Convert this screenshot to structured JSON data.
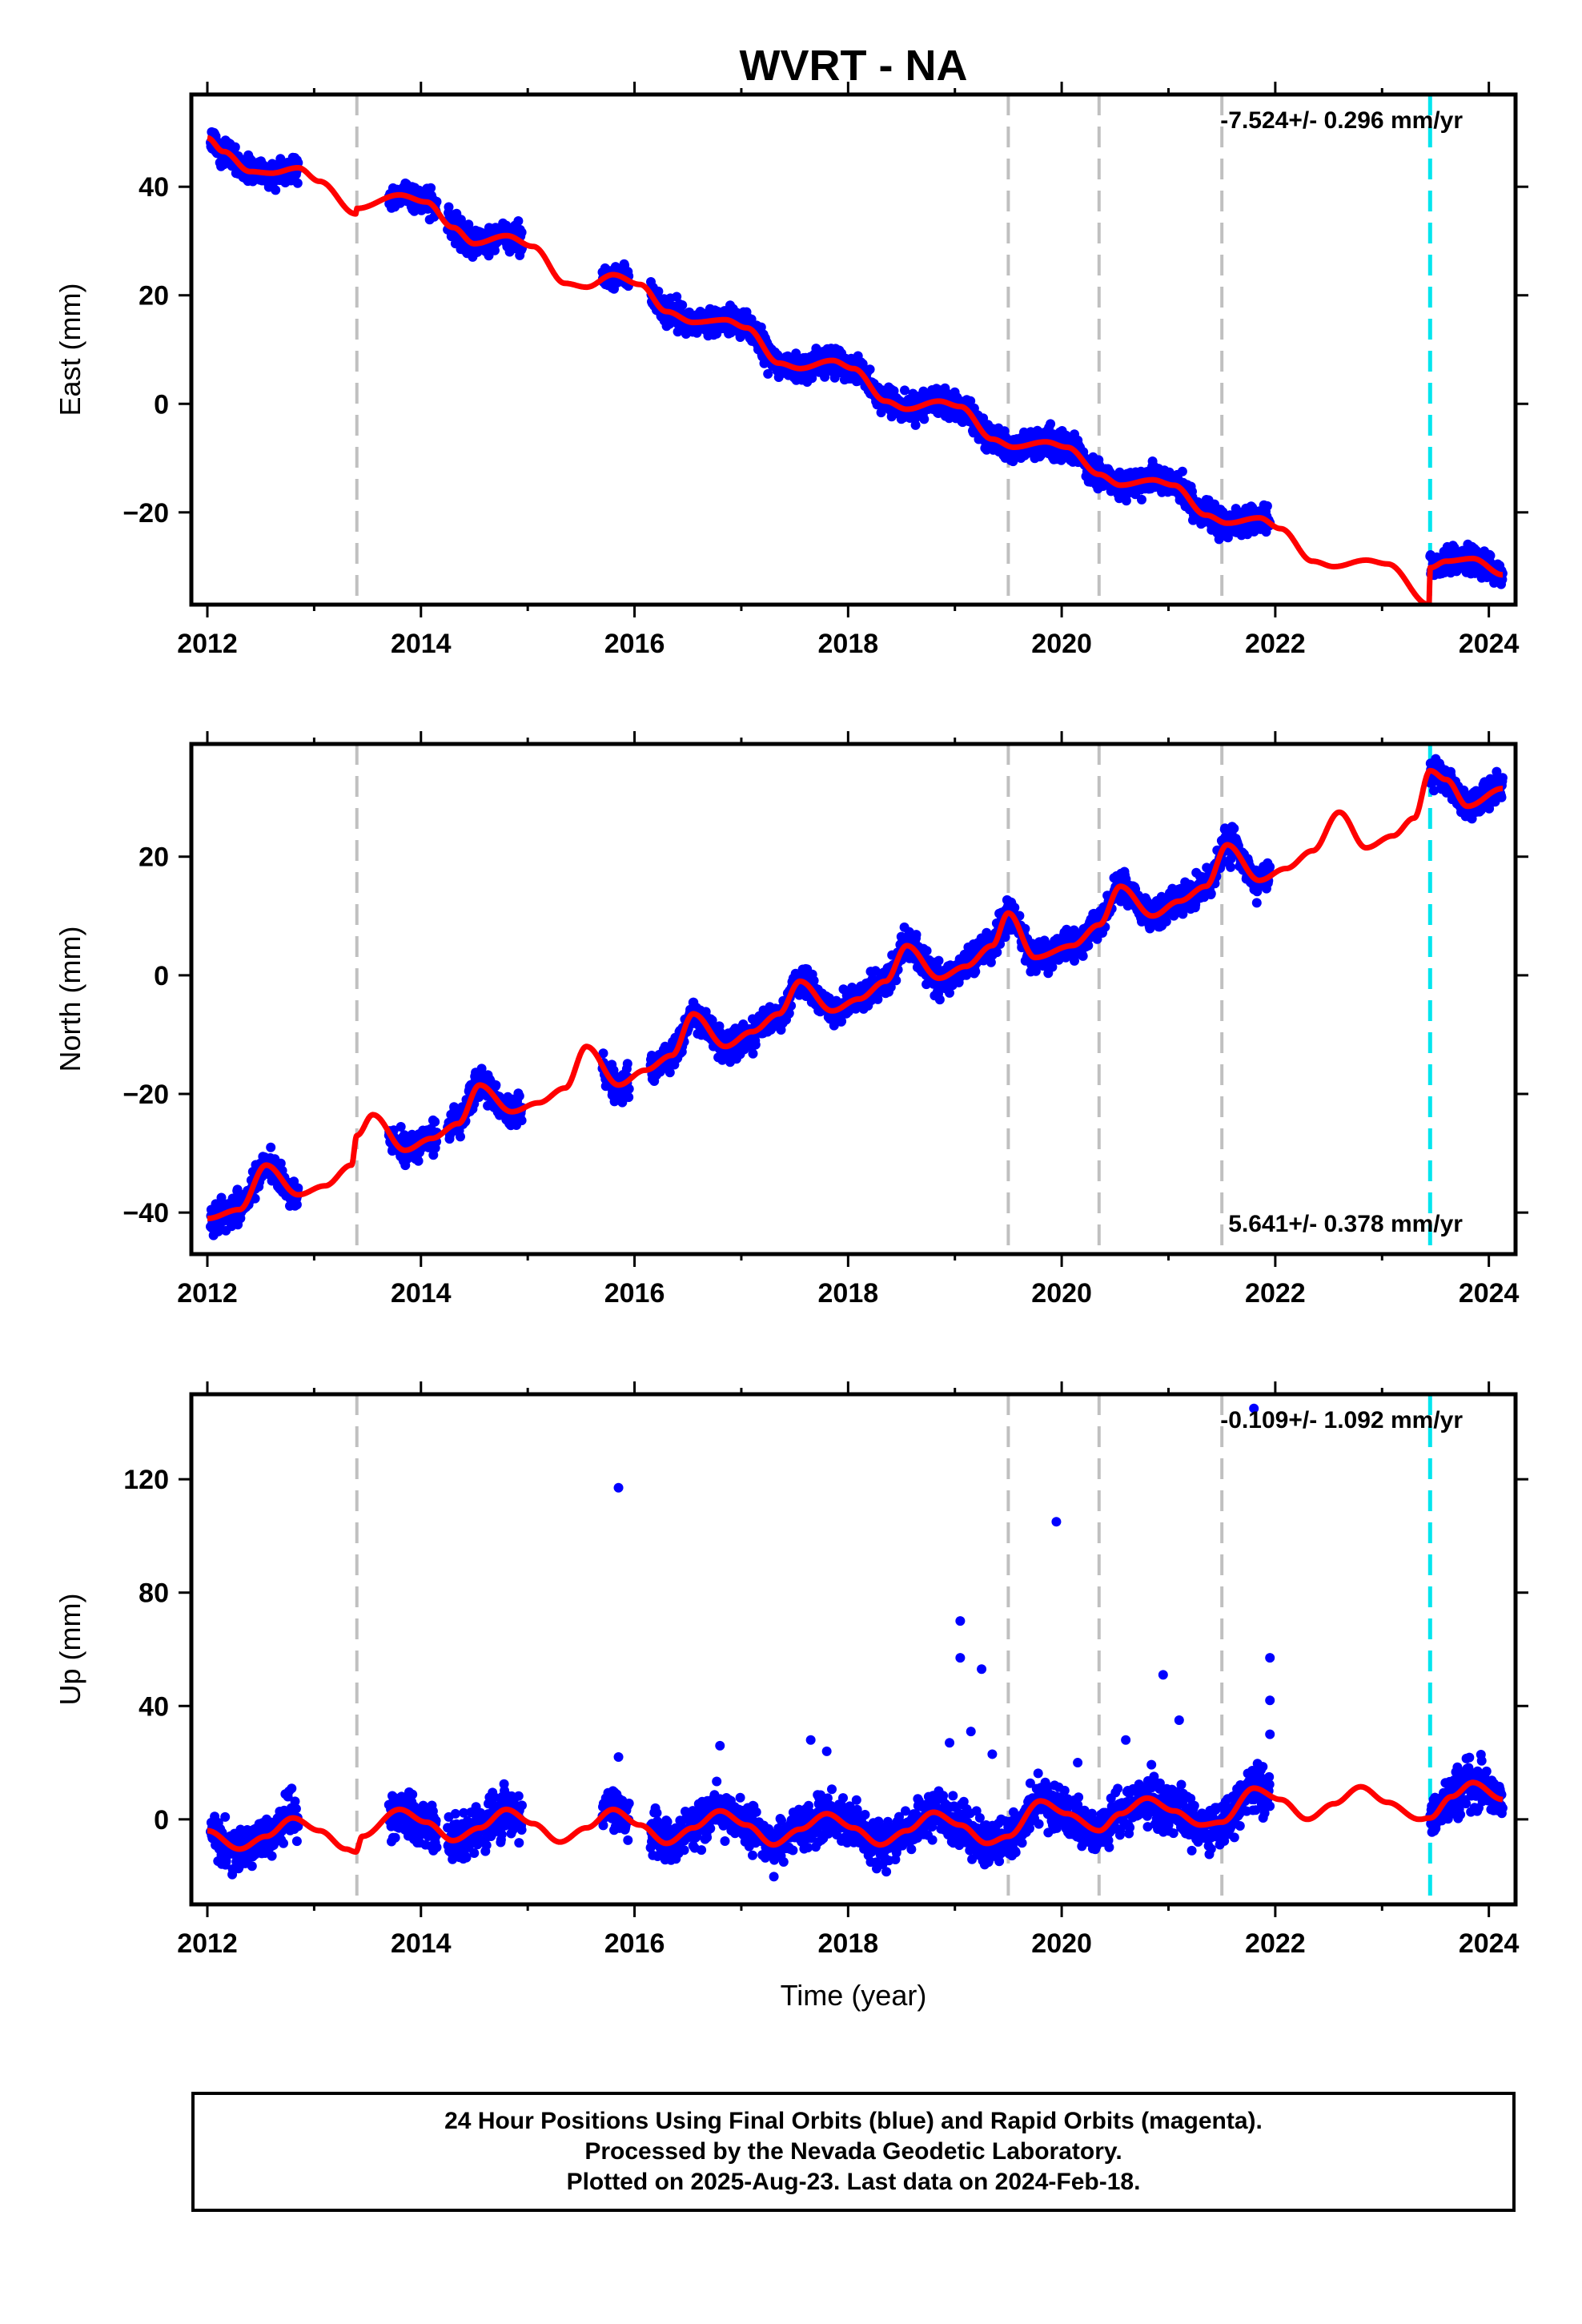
{
  "title": "WVRT - NA",
  "colors": {
    "data_points": "#0000ff",
    "model_line": "#ff0000",
    "equipment_change": "#c0c0c0",
    "earthquake_line": "#00e5ee",
    "frame": "#000000"
  },
  "xlabel": "Time (year)",
  "caption": [
    "24 Hour Positions Using Final Orbits (blue) and Rapid Orbits (magenta).",
    "Processed by the Nevada Geodetic Laboratory.",
    "Plotted on 2025-Aug-23. Last data on 2024-Feb-18."
  ],
  "chart_data": [
    {
      "type": "scatter",
      "component": "East",
      "ylabel": "East (mm)",
      "rate_label": "-7.524+/- 0.296 mm/yr",
      "rate_position": "top-right",
      "xlim": [
        2011.85,
        2024.25
      ],
      "ylim": [
        -37,
        57
      ],
      "xticks": [
        2012,
        2014,
        2016,
        2018,
        2020,
        2022,
        2024
      ],
      "yticks": [
        -20,
        0,
        20,
        40
      ],
      "gray_dashed_lines": [
        2013.4,
        2019.5,
        2020.35,
        2021.5
      ],
      "cyan_dashed_lines": [
        2023.45
      ],
      "data_segments": [
        [
          2012.03,
          2012.85
        ],
        [
          2013.7,
          2014.15
        ],
        [
          2014.25,
          2014.95
        ],
        [
          2015.7,
          2015.95
        ],
        [
          2016.15,
          2021.95
        ],
        [
          2023.45,
          2024.13
        ]
      ],
      "model_knots": [
        [
          2012.0,
          49
        ],
        [
          2012.15,
          46.5
        ],
        [
          2012.4,
          42.8
        ],
        [
          2012.6,
          42.5
        ],
        [
          2012.85,
          43.5
        ],
        [
          2013.05,
          41
        ],
        [
          2013.39,
          35
        ],
        [
          2013.4,
          36
        ],
        [
          2013.8,
          38.5
        ],
        [
          2014.05,
          37.2
        ],
        [
          2014.3,
          32.5
        ],
        [
          2014.5,
          29.5
        ],
        [
          2014.8,
          31
        ],
        [
          2015.05,
          29
        ],
        [
          2015.35,
          22.2
        ],
        [
          2015.55,
          21.5
        ],
        [
          2015.8,
          23.8
        ],
        [
          2016.05,
          22
        ],
        [
          2016.3,
          17
        ],
        [
          2016.55,
          15
        ],
        [
          2016.85,
          15.5
        ],
        [
          2017.05,
          14
        ],
        [
          2017.35,
          7.5
        ],
        [
          2017.55,
          6.5
        ],
        [
          2017.85,
          8
        ],
        [
          2018.05,
          6.5
        ],
        [
          2018.35,
          0.5
        ],
        [
          2018.55,
          -1
        ],
        [
          2018.85,
          0.5
        ],
        [
          2019.05,
          -0.5
        ],
        [
          2019.35,
          -6.5
        ],
        [
          2019.55,
          -8
        ],
        [
          2019.85,
          -7
        ],
        [
          2020.05,
          -8
        ],
        [
          2020.35,
          -13
        ],
        [
          2020.55,
          -15
        ],
        [
          2020.85,
          -14
        ],
        [
          2021.05,
          -15
        ],
        [
          2021.35,
          -20.5
        ],
        [
          2021.55,
          -22
        ],
        [
          2021.85,
          -21
        ],
        [
          2022.05,
          -23
        ],
        [
          2022.35,
          -29
        ],
        [
          2022.55,
          -30
        ],
        [
          2022.85,
          -28.8
        ],
        [
          2023.05,
          -29.5
        ],
        [
          2023.44,
          -37
        ],
        [
          2023.45,
          -30.2
        ],
        [
          2023.6,
          -29
        ],
        [
          2023.85,
          -28.5
        ],
        [
          2024.13,
          -31.5
        ]
      ],
      "outliers": []
    },
    {
      "type": "scatter",
      "component": "North",
      "ylabel": "North (mm)",
      "rate_label": "5.641+/- 0.378 mm/yr",
      "rate_position": "bottom-right",
      "xlim": [
        2011.85,
        2024.25
      ],
      "ylim": [
        -47,
        39
      ],
      "xticks": [
        2012,
        2014,
        2016,
        2018,
        2020,
        2022,
        2024
      ],
      "yticks": [
        -40,
        -20,
        0,
        20
      ],
      "gray_dashed_lines": [
        2013.4,
        2019.5,
        2020.35,
        2021.5
      ],
      "cyan_dashed_lines": [
        2023.45
      ],
      "data_segments": [
        [
          2012.03,
          2012.85
        ],
        [
          2013.7,
          2014.15
        ],
        [
          2014.25,
          2014.95
        ],
        [
          2015.7,
          2015.95
        ],
        [
          2016.15,
          2021.95
        ],
        [
          2023.45,
          2024.13
        ]
      ],
      "model_knots": [
        [
          2012.0,
          -41
        ],
        [
          2012.3,
          -39.5
        ],
        [
          2012.55,
          -32
        ],
        [
          2012.85,
          -37
        ],
        [
          2013.1,
          -35.5
        ],
        [
          2013.35,
          -32
        ],
        [
          2013.4,
          -27
        ],
        [
          2013.55,
          -23.5
        ],
        [
          2013.85,
          -29.5
        ],
        [
          2014.1,
          -27.5
        ],
        [
          2014.35,
          -25
        ],
        [
          2014.55,
          -18.5
        ],
        [
          2014.85,
          -23
        ],
        [
          2015.1,
          -21.5
        ],
        [
          2015.35,
          -19
        ],
        [
          2015.55,
          -12
        ],
        [
          2015.85,
          -18.5
        ],
        [
          2016.1,
          -16
        ],
        [
          2016.35,
          -13.5
        ],
        [
          2016.55,
          -6.5
        ],
        [
          2016.85,
          -12
        ],
        [
          2017.1,
          -9.5
        ],
        [
          2017.35,
          -6.5
        ],
        [
          2017.55,
          -1
        ],
        [
          2017.85,
          -6
        ],
        [
          2018.1,
          -4
        ],
        [
          2018.35,
          -1
        ],
        [
          2018.55,
          5
        ],
        [
          2018.85,
          -0.5
        ],
        [
          2019.1,
          1.5
        ],
        [
          2019.35,
          5
        ],
        [
          2019.5,
          10.5
        ],
        [
          2019.75,
          3
        ],
        [
          2020.1,
          5
        ],
        [
          2020.35,
          8.5
        ],
        [
          2020.55,
          15
        ],
        [
          2020.85,
          10
        ],
        [
          2021.1,
          12.5
        ],
        [
          2021.35,
          15
        ],
        [
          2021.55,
          22
        ],
        [
          2021.85,
          16
        ],
        [
          2022.1,
          18
        ],
        [
          2022.35,
          21
        ],
        [
          2022.6,
          27.5
        ],
        [
          2022.85,
          21.5
        ],
        [
          2023.1,
          23.5
        ],
        [
          2023.3,
          26.5
        ],
        [
          2023.45,
          34.5
        ],
        [
          2023.6,
          33
        ],
        [
          2023.8,
          28.5
        ],
        [
          2024.13,
          31.5
        ]
      ],
      "outliers": []
    },
    {
      "type": "scatter",
      "component": "Up",
      "ylabel": "Up (mm)",
      "rate_label": "-0.109+/- 1.092 mm/yr",
      "rate_position": "top-right",
      "xlim": [
        2011.85,
        2024.25
      ],
      "ylim": [
        -30,
        150
      ],
      "xticks": [
        2012,
        2014,
        2016,
        2018,
        2020,
        2022,
        2024
      ],
      "yticks": [
        0,
        40,
        80,
        120
      ],
      "gray_dashed_lines": [
        2013.4,
        2019.5,
        2020.35,
        2021.5
      ],
      "cyan_dashed_lines": [
        2023.45
      ],
      "data_segments": [
        [
          2012.03,
          2012.85
        ],
        [
          2013.7,
          2014.15
        ],
        [
          2014.25,
          2014.95
        ],
        [
          2015.7,
          2015.95
        ],
        [
          2016.15,
          2021.95
        ],
        [
          2023.45,
          2024.13
        ]
      ],
      "model_knots": [
        [
          2012.0,
          -4
        ],
        [
          2012.3,
          -10.5
        ],
        [
          2012.55,
          -6
        ],
        [
          2012.8,
          0.5
        ],
        [
          2013.05,
          -4
        ],
        [
          2013.3,
          -10.5
        ],
        [
          2013.39,
          -11.5
        ],
        [
          2013.45,
          -6
        ],
        [
          2013.8,
          3.5
        ],
        [
          2014.05,
          -1
        ],
        [
          2014.3,
          -7.5
        ],
        [
          2014.55,
          -3
        ],
        [
          2014.8,
          3.5
        ],
        [
          2015.05,
          -1.5
        ],
        [
          2015.3,
          -8
        ],
        [
          2015.55,
          -3
        ],
        [
          2015.8,
          3.5
        ],
        [
          2016.05,
          -2
        ],
        [
          2016.3,
          -8.5
        ],
        [
          2016.55,
          -3
        ],
        [
          2016.8,
          3
        ],
        [
          2017.05,
          -2
        ],
        [
          2017.3,
          -9
        ],
        [
          2017.55,
          -3.5
        ],
        [
          2017.8,
          2
        ],
        [
          2018.05,
          -3
        ],
        [
          2018.3,
          -9
        ],
        [
          2018.55,
          -4
        ],
        [
          2018.8,
          2.5
        ],
        [
          2019.05,
          -2
        ],
        [
          2019.3,
          -8.5
        ],
        [
          2019.5,
          -6
        ],
        [
          2019.8,
          6.5
        ],
        [
          2020.05,
          2
        ],
        [
          2020.35,
          -4
        ],
        [
          2020.55,
          2
        ],
        [
          2020.8,
          7.5
        ],
        [
          2021.05,
          3
        ],
        [
          2021.3,
          -2
        ],
        [
          2021.5,
          -1
        ],
        [
          2021.8,
          11
        ],
        [
          2022.05,
          7
        ],
        [
          2022.3,
          0
        ],
        [
          2022.55,
          5.5
        ],
        [
          2022.8,
          11.5
        ],
        [
          2023.05,
          6
        ],
        [
          2023.35,
          0
        ],
        [
          2023.45,
          0.5
        ],
        [
          2023.65,
          8
        ],
        [
          2023.85,
          13
        ],
        [
          2024.13,
          7
        ]
      ],
      "outliers": [
        [
          2015.85,
          117
        ],
        [
          2015.85,
          22
        ],
        [
          2016.8,
          26
        ],
        [
          2017.65,
          28
        ],
        [
          2017.8,
          24
        ],
        [
          2018.95,
          27
        ],
        [
          2019.05,
          70
        ],
        [
          2019.05,
          57
        ],
        [
          2019.15,
          31
        ],
        [
          2019.25,
          53
        ],
        [
          2019.35,
          23
        ],
        [
          2019.95,
          105
        ],
        [
          2020.15,
          20
        ],
        [
          2020.6,
          28
        ],
        [
          2020.95,
          51
        ],
        [
          2021.1,
          35
        ],
        [
          2021.95,
          57
        ],
        [
          2021.95,
          42
        ],
        [
          2021.95,
          30
        ],
        [
          2021.8,
          145
        ]
      ]
    }
  ]
}
